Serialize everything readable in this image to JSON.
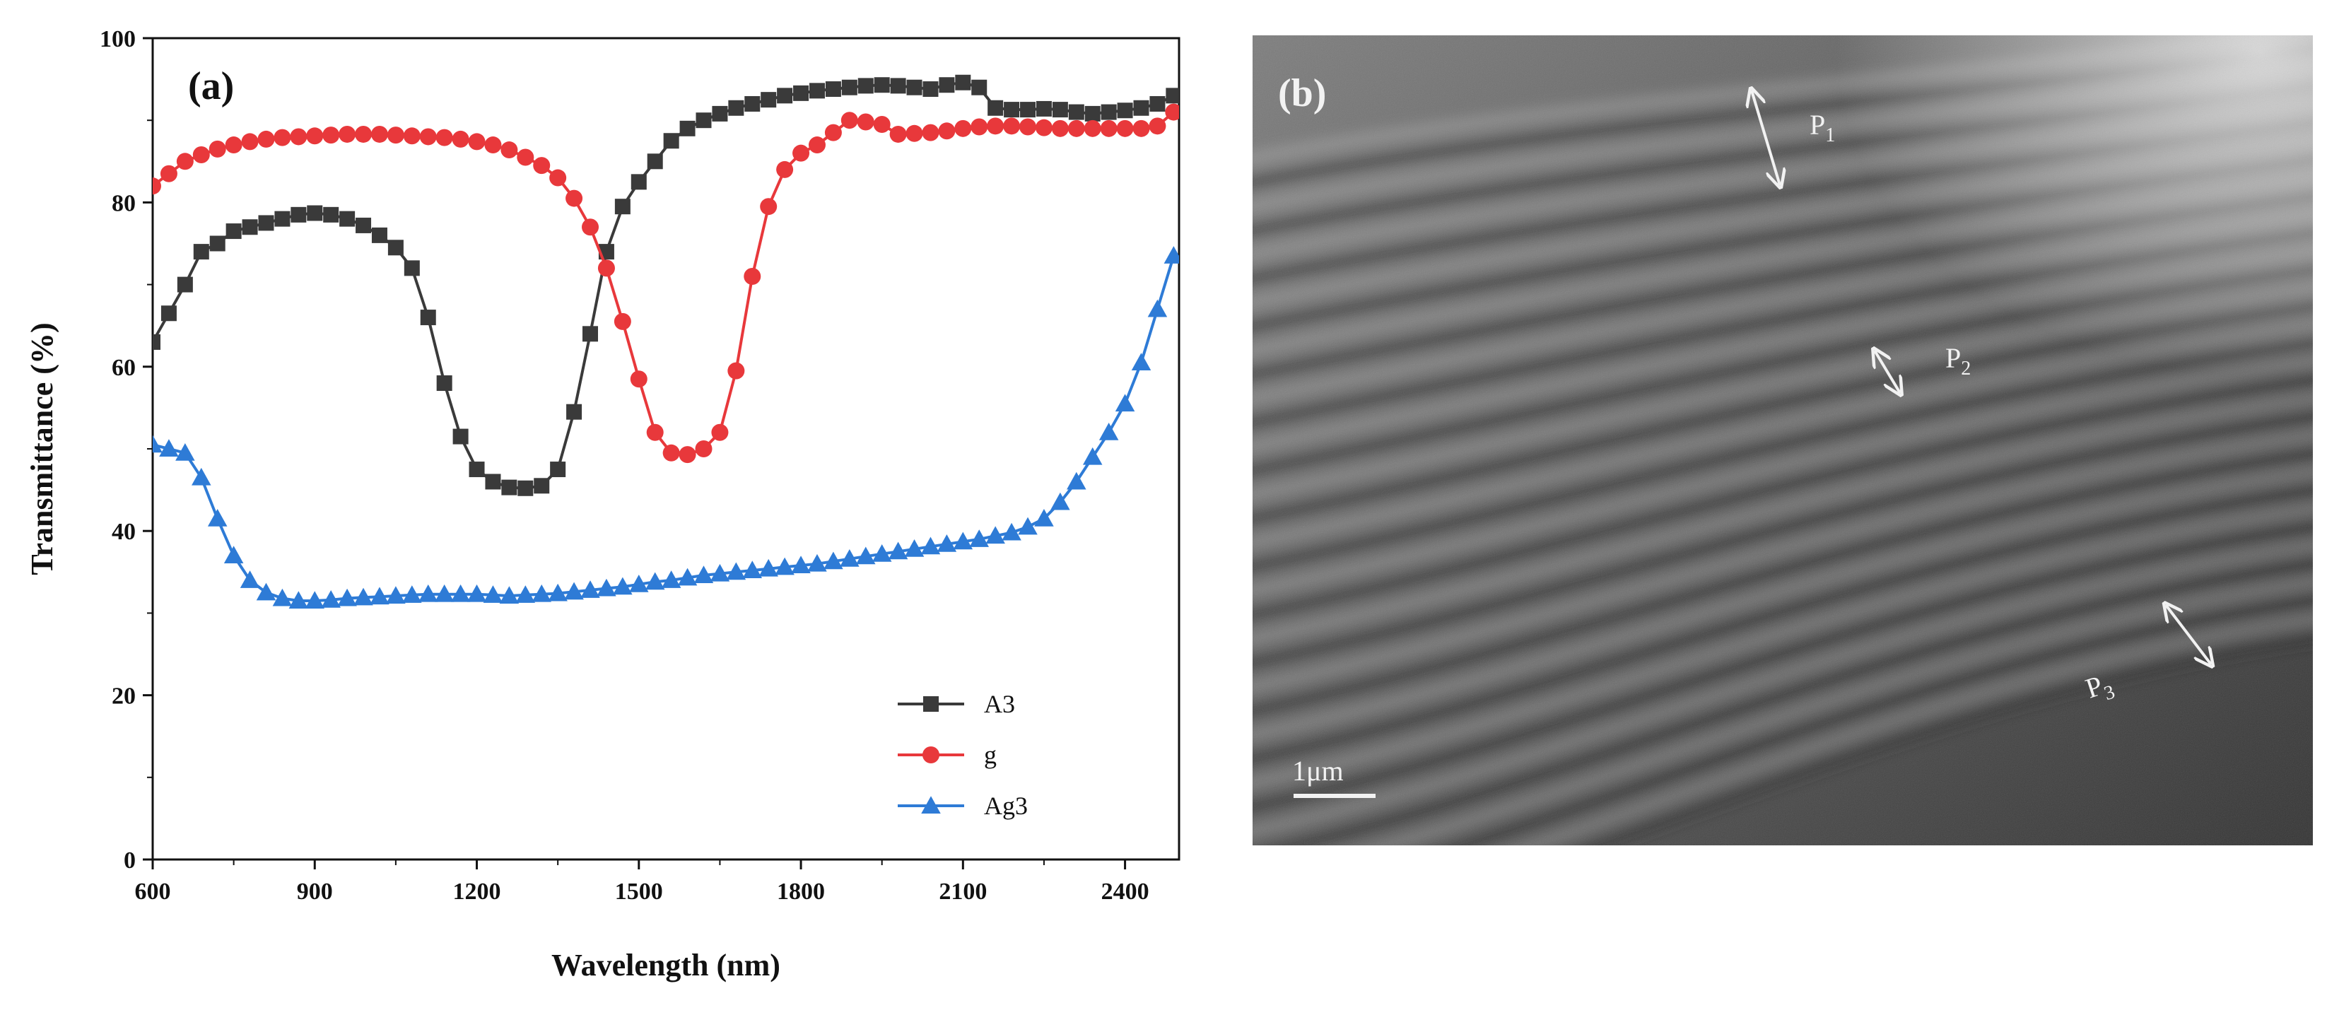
{
  "chart_data": [
    {
      "type": "line",
      "panel_label": "(a)",
      "title": "",
      "xlabel": "Wavelength (nm)",
      "ylabel": "Transmittance (%)",
      "xlim": [
        600,
        2500
      ],
      "ylim": [
        0,
        100
      ],
      "xticks": [
        600,
        900,
        1200,
        1500,
        1800,
        2100,
        2400
      ],
      "yticks": [
        0,
        20,
        40,
        60,
        80,
        100
      ],
      "grid": false,
      "legend_position": "bottom-right",
      "series": [
        {
          "name": "A3",
          "color": "#3a3a3a",
          "marker": "square",
          "x": [
            600,
            630,
            660,
            690,
            720,
            750,
            780,
            810,
            840,
            870,
            900,
            930,
            960,
            990,
            1020,
            1050,
            1080,
            1110,
            1140,
            1170,
            1200,
            1230,
            1260,
            1290,
            1320,
            1350,
            1380,
            1410,
            1440,
            1470,
            1500,
            1530,
            1560,
            1590,
            1620,
            1650,
            1680,
            1710,
            1740,
            1770,
            1800,
            1830,
            1860,
            1890,
            1920,
            1950,
            1980,
            2010,
            2040,
            2070,
            2100,
            2130,
            2160,
            2190,
            2220,
            2250,
            2280,
            2310,
            2340,
            2370,
            2400,
            2430,
            2460,
            2490
          ],
          "y": [
            63,
            66.5,
            70,
            74,
            75,
            76.5,
            77,
            77.5,
            78,
            78.5,
            78.7,
            78.5,
            78,
            77.2,
            76,
            74.5,
            72,
            66,
            58,
            51.5,
            47.5,
            46,
            45.3,
            45.2,
            45.5,
            47.5,
            54.5,
            64,
            74,
            79.5,
            82.5,
            85,
            87.5,
            89,
            90,
            90.8,
            91.5,
            92,
            92.5,
            93,
            93.3,
            93.6,
            93.8,
            94,
            94.2,
            94.3,
            94.2,
            94,
            93.8,
            94.3,
            94.6,
            94,
            91.5,
            91.3,
            91.3,
            91.4,
            91.3,
            91,
            90.8,
            91,
            91.2,
            91.5,
            92,
            93
          ]
        },
        {
          "name": "g",
          "color": "#e8383b",
          "marker": "circle",
          "x": [
            600,
            630,
            660,
            690,
            720,
            750,
            780,
            810,
            840,
            870,
            900,
            930,
            960,
            990,
            1020,
            1050,
            1080,
            1110,
            1140,
            1170,
            1200,
            1230,
            1260,
            1290,
            1320,
            1350,
            1380,
            1410,
            1440,
            1470,
            1500,
            1530,
            1560,
            1590,
            1620,
            1650,
            1680,
            1710,
            1740,
            1770,
            1800,
            1830,
            1860,
            1890,
            1920,
            1950,
            1980,
            2010,
            2040,
            2070,
            2100,
            2130,
            2160,
            2190,
            2220,
            2250,
            2280,
            2310,
            2340,
            2370,
            2400,
            2430,
            2460,
            2490
          ],
          "y": [
            82,
            83.5,
            85,
            85.8,
            86.5,
            87,
            87.4,
            87.7,
            87.9,
            88,
            88.1,
            88.2,
            88.3,
            88.3,
            88.3,
            88.2,
            88.1,
            88,
            87.9,
            87.7,
            87.4,
            87,
            86.4,
            85.5,
            84.5,
            83,
            80.5,
            77,
            72,
            65.5,
            58.5,
            52,
            49.5,
            49.3,
            50,
            52,
            59.5,
            71,
            79.5,
            84,
            86,
            87,
            88.5,
            90,
            89.8,
            89.5,
            88.3,
            88.4,
            88.5,
            88.7,
            89,
            89.2,
            89.3,
            89.3,
            89.2,
            89.1,
            89,
            89,
            89,
            89,
            89,
            89,
            89.3,
            91
          ]
        },
        {
          "name": "Ag3",
          "color": "#2e7bd6",
          "marker": "triangle",
          "x": [
            600,
            630,
            660,
            690,
            720,
            750,
            780,
            810,
            840,
            870,
            900,
            930,
            960,
            990,
            1020,
            1050,
            1080,
            1110,
            1140,
            1170,
            1200,
            1230,
            1260,
            1290,
            1320,
            1350,
            1380,
            1410,
            1440,
            1470,
            1500,
            1530,
            1560,
            1590,
            1620,
            1650,
            1680,
            1710,
            1740,
            1770,
            1800,
            1830,
            1860,
            1890,
            1920,
            1950,
            1980,
            2010,
            2040,
            2070,
            2100,
            2130,
            2160,
            2190,
            2220,
            2250,
            2280,
            2310,
            2340,
            2370,
            2400,
            2430,
            2460,
            2490
          ],
          "y": [
            50.5,
            50,
            49.5,
            46.5,
            41.5,
            37,
            34,
            32.5,
            31.8,
            31.5,
            31.5,
            31.6,
            31.8,
            31.9,
            32,
            32.1,
            32.2,
            32.3,
            32.3,
            32.3,
            32.3,
            32.2,
            32.1,
            32.2,
            32.3,
            32.4,
            32.6,
            32.8,
            33,
            33.2,
            33.5,
            33.8,
            34,
            34.3,
            34.6,
            34.8,
            35,
            35.2,
            35.4,
            35.6,
            35.8,
            36,
            36.3,
            36.6,
            36.9,
            37.2,
            37.5,
            37.8,
            38.1,
            38.4,
            38.7,
            39,
            39.4,
            39.8,
            40.5,
            41.5,
            43.5,
            46,
            49,
            52,
            55.5,
            60.5,
            67,
            73.5
          ]
        }
      ]
    }
  ],
  "sem": {
    "panel_label": "(b)",
    "scale_bar_label": "1μm",
    "annotations": [
      {
        "main": "P",
        "sub": "1"
      },
      {
        "main": "P",
        "sub": "2"
      },
      {
        "main": "P",
        "sub": "3"
      }
    ]
  }
}
